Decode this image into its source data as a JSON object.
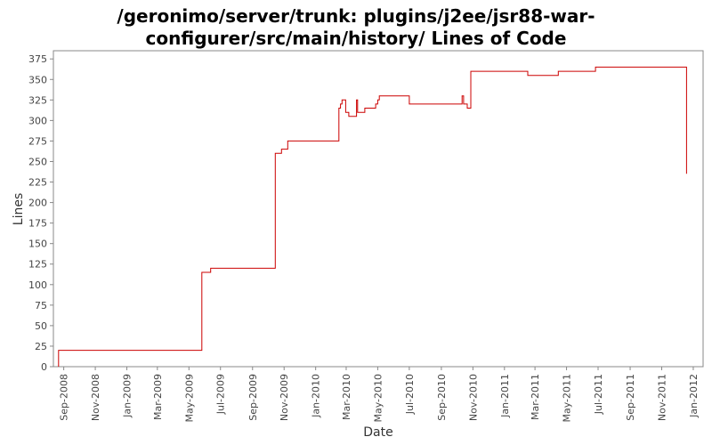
{
  "chart_data": {
    "type": "line",
    "title_lines": [
      "/geronimo/server/trunk: plugins/j2ee/jsr88-war-",
      "configurer/src/main/history/ Lines of Code"
    ],
    "xlabel": "Date",
    "ylabel": "Lines",
    "ylim": [
      0,
      385
    ],
    "yticks": [
      0,
      25,
      50,
      75,
      100,
      125,
      150,
      175,
      200,
      225,
      250,
      275,
      300,
      325,
      350,
      375
    ],
    "xlim": [
      "2008-08-12",
      "2012-01-20"
    ],
    "xticks": [
      {
        "date": "2008-09-01",
        "label": "Sep-2008"
      },
      {
        "date": "2008-11-01",
        "label": "Nov-2008"
      },
      {
        "date": "2009-01-01",
        "label": "Jan-2009"
      },
      {
        "date": "2009-03-01",
        "label": "Mar-2009"
      },
      {
        "date": "2009-05-01",
        "label": "May-2009"
      },
      {
        "date": "2009-07-01",
        "label": "Jul-2009"
      },
      {
        "date": "2009-09-01",
        "label": "Sep-2009"
      },
      {
        "date": "2009-11-01",
        "label": "Nov-2009"
      },
      {
        "date": "2010-01-01",
        "label": "Jan-2010"
      },
      {
        "date": "2010-03-01",
        "label": "Mar-2010"
      },
      {
        "date": "2010-05-01",
        "label": "May-2010"
      },
      {
        "date": "2010-07-01",
        "label": "Jul-2010"
      },
      {
        "date": "2010-09-01",
        "label": "Sep-2010"
      },
      {
        "date": "2010-11-01",
        "label": "Nov-2010"
      },
      {
        "date": "2011-01-01",
        "label": "Jan-2011"
      },
      {
        "date": "2011-03-01",
        "label": "Mar-2011"
      },
      {
        "date": "2011-05-01",
        "label": "May-2011"
      },
      {
        "date": "2011-07-01",
        "label": "Jul-2011"
      },
      {
        "date": "2011-09-01",
        "label": "Sep-2011"
      },
      {
        "date": "2011-11-01",
        "label": "Nov-2011"
      },
      {
        "date": "2012-01-01",
        "label": "Jan-2012"
      }
    ],
    "grid": false,
    "line_color": "#cc0000",
    "step": true,
    "series": [
      {
        "points": [
          {
            "x": "2008-08-22",
            "y": 0
          },
          {
            "x": "2008-08-22",
            "y": 20
          },
          {
            "x": "2009-05-26",
            "y": 20
          },
          {
            "x": "2009-05-26",
            "y": 115
          },
          {
            "x": "2009-06-12",
            "y": 115
          },
          {
            "x": "2009-06-12",
            "y": 120
          },
          {
            "x": "2009-10-15",
            "y": 120
          },
          {
            "x": "2009-10-15",
            "y": 260
          },
          {
            "x": "2009-10-27",
            "y": 260
          },
          {
            "x": "2009-10-27",
            "y": 265
          },
          {
            "x": "2009-11-08",
            "y": 265
          },
          {
            "x": "2009-11-08",
            "y": 275
          },
          {
            "x": "2010-02-15",
            "y": 275
          },
          {
            "x": "2010-02-15",
            "y": 315
          },
          {
            "x": "2010-02-18",
            "y": 315
          },
          {
            "x": "2010-02-18",
            "y": 320
          },
          {
            "x": "2010-02-21",
            "y": 320
          },
          {
            "x": "2010-02-21",
            "y": 325
          },
          {
            "x": "2010-02-28",
            "y": 325
          },
          {
            "x": "2010-02-28",
            "y": 310
          },
          {
            "x": "2010-03-06",
            "y": 310
          },
          {
            "x": "2010-03-06",
            "y": 305
          },
          {
            "x": "2010-03-21",
            "y": 305
          },
          {
            "x": "2010-03-21",
            "y": 325
          },
          {
            "x": "2010-03-23",
            "y": 325
          },
          {
            "x": "2010-03-23",
            "y": 310
          },
          {
            "x": "2010-04-06",
            "y": 310
          },
          {
            "x": "2010-04-06",
            "y": 315
          },
          {
            "x": "2010-04-27",
            "y": 315
          },
          {
            "x": "2010-04-27",
            "y": 320
          },
          {
            "x": "2010-05-01",
            "y": 320
          },
          {
            "x": "2010-05-01",
            "y": 325
          },
          {
            "x": "2010-05-04",
            "y": 325
          },
          {
            "x": "2010-05-04",
            "y": 330
          },
          {
            "x": "2010-07-01",
            "y": 330
          },
          {
            "x": "2010-07-01",
            "y": 320
          },
          {
            "x": "2010-10-11",
            "y": 320
          },
          {
            "x": "2010-10-11",
            "y": 330
          },
          {
            "x": "2010-10-14",
            "y": 330
          },
          {
            "x": "2010-10-14",
            "y": 320
          },
          {
            "x": "2010-10-21",
            "y": 320
          },
          {
            "x": "2010-10-21",
            "y": 315
          },
          {
            "x": "2010-10-28",
            "y": 315
          },
          {
            "x": "2010-10-28",
            "y": 360
          },
          {
            "x": "2011-02-15",
            "y": 360
          },
          {
            "x": "2011-02-15",
            "y": 355
          },
          {
            "x": "2011-04-15",
            "y": 355
          },
          {
            "x": "2011-04-15",
            "y": 360
          },
          {
            "x": "2011-06-26",
            "y": 360
          },
          {
            "x": "2011-06-26",
            "y": 365
          },
          {
            "x": "2011-12-19",
            "y": 365
          },
          {
            "x": "2011-12-19",
            "y": 235
          }
        ]
      }
    ]
  }
}
